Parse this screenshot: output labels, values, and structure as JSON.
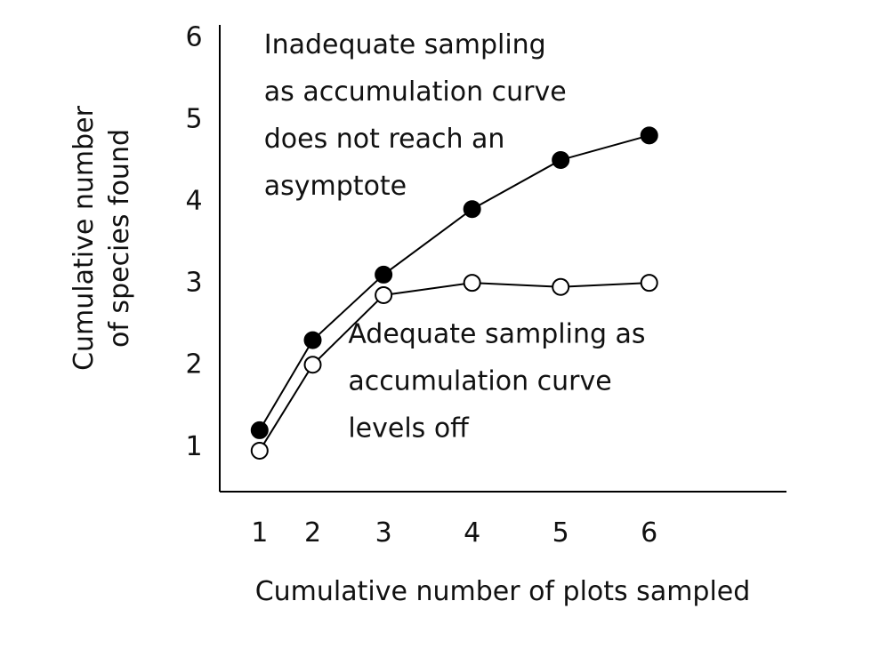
{
  "chart_data": {
    "type": "line",
    "title": "",
    "xlabel": "Cumulative number  of plots sampled",
    "ylabel_lines": [
      "Cumulative number",
      "of species found"
    ],
    "xlim": [
      0.55,
      6.95
    ],
    "ylim": [
      0.45,
      6.15
    ],
    "x_ticks": [
      1,
      2,
      3,
      4,
      5,
      6
    ],
    "x_tick_labels": [
      "1",
      "2",
      "3",
      "4",
      "5",
      "6"
    ],
    "y_ticks": [
      1,
      2,
      3,
      4,
      5,
      6
    ],
    "y_tick_labels": [
      "1",
      "2",
      "3",
      "4",
      "5",
      "6"
    ],
    "x": [
      1,
      1.6,
      2.4,
      3.4,
      4.4,
      5.4
    ],
    "grid": false,
    "legend": "none",
    "series": [
      {
        "marker": "filled",
        "color": "#000000",
        "values": [
          1.2,
          2.3,
          3.1,
          3.9,
          4.5,
          4.8
        ]
      },
      {
        "marker": "open",
        "color": "#000000",
        "values": [
          0.95,
          2.0,
          2.85,
          3.0,
          2.95,
          3.0
        ]
      }
    ],
    "annotations": [
      {
        "lines": [
          "Inadequate sampling",
          "as accumulation curve",
          "does not reach an",
          "asymptote"
        ],
        "anchor_x": 1.05,
        "anchor_y": 5.8
      },
      {
        "lines": [
          "Adequate sampling as",
          "accumulation  curve",
          "levels off"
        ],
        "anchor_x": 2.0,
        "anchor_y": 2.27
      }
    ]
  }
}
